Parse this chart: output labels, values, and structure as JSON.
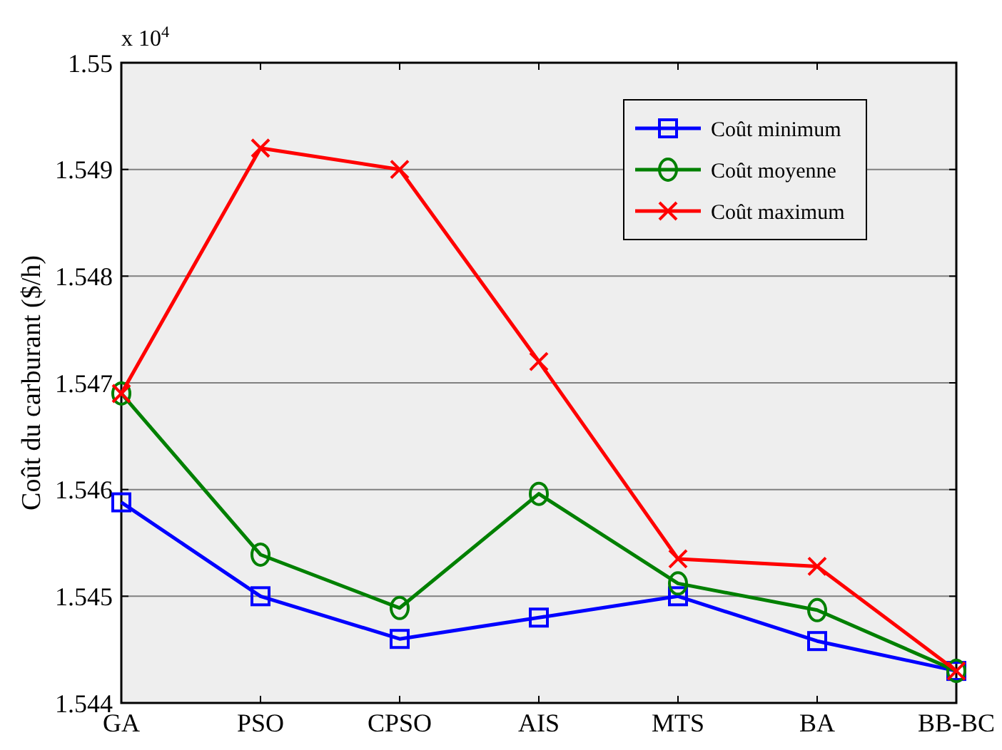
{
  "chart_data": {
    "type": "line",
    "ylabel": "Coût du carburant ($/h)",
    "annotations": [
      "x 10$^{4}$"
    ],
    "categories": [
      "GA",
      "PSO",
      "CPSO",
      "AIS",
      "MTS",
      "BA",
      "BB-BC"
    ],
    "series": [
      {
        "name": "Coût minimum",
        "color": "#0000ff",
        "marker": "square",
        "values": [
          1.54588,
          1.545,
          1.5446,
          1.5448,
          1.545,
          1.54458,
          1.5443
        ]
      },
      {
        "name": "Coût moyenne",
        "color": "#008000",
        "marker": "circle",
        "values": [
          1.5469,
          1.54539,
          1.54489,
          1.54596,
          1.54512,
          1.54487,
          1.5443
        ]
      },
      {
        "name": "Coût maximum",
        "color": "#ff0000",
        "marker": "cross",
        "values": [
          1.5469,
          1.5492,
          1.549,
          1.5472,
          1.54535,
          1.54528,
          1.5443
        ]
      }
    ],
    "ylim": [
      1.544,
      1.55
    ],
    "yticks": [
      1.544,
      1.545,
      1.546,
      1.547,
      1.548,
      1.549,
      1.55
    ],
    "grid": "y",
    "legend": "top right",
    "line_style": "solid"
  }
}
